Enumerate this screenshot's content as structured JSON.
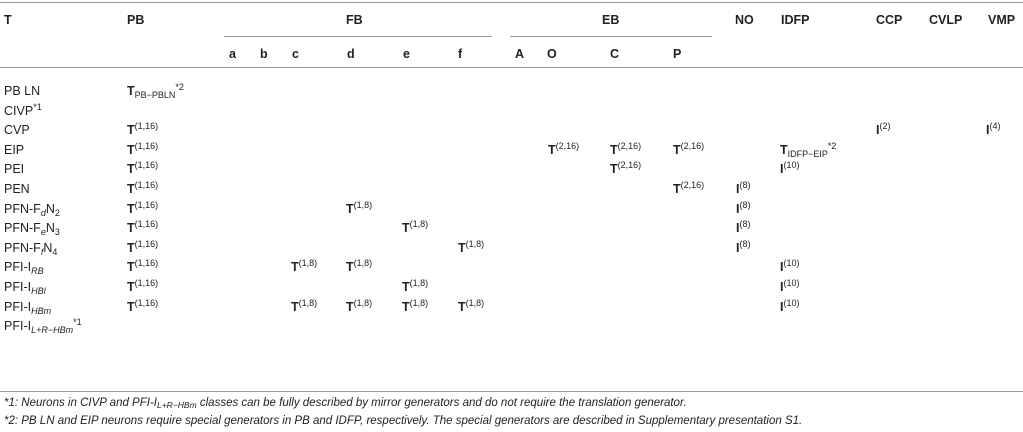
{
  "table": {
    "headers": {
      "T": "T",
      "PB": "PB",
      "FB": "FB",
      "EB": "EB",
      "NO": "NO",
      "IDFP": "IDFP",
      "CCP": "CCP",
      "CVLP": "CVLP",
      "VMP": "VMP"
    },
    "subheaders": {
      "a": "a",
      "b": "b",
      "c": "c",
      "d": "d",
      "e": "e",
      "f": "f",
      "A": "A",
      "O": "O",
      "C": "C",
      "P": "P"
    },
    "rows": [
      {
        "label": [
          "PB LN"
        ],
        "cells": {
          "PB": {
            "m": "T",
            "sub": "PB−PBLN",
            "sup": "*2"
          }
        }
      },
      {
        "label": [
          "CIVP",
          {
            "sup": "*1"
          }
        ],
        "cells": {}
      },
      {
        "label": [
          "CVP"
        ],
        "cells": {
          "PB": {
            "m": "T",
            "sup": "(1,16)"
          },
          "CCP": {
            "m": "I",
            "sup": "(2)"
          },
          "VMP": {
            "m": "I",
            "sup": "(4)"
          }
        }
      },
      {
        "label": [
          "EIP"
        ],
        "cells": {
          "PB": {
            "m": "T",
            "sup": "(1,16)"
          },
          "A": {
            "m": "T",
            "sup": "(2,16)"
          },
          "C": {
            "m": "T",
            "sup": "(2,16)"
          },
          "P": {
            "m": "T",
            "sup": "(2,16)"
          },
          "IDFP": {
            "m": "T",
            "sub": "IDFP−EIP",
            "sup": "*2"
          }
        }
      },
      {
        "label": [
          "PEI"
        ],
        "cells": {
          "PB": {
            "m": "T",
            "sup": "(1,16)"
          },
          "C": {
            "m": "T",
            "sup": "(2,16)"
          },
          "IDFP": {
            "m": "I",
            "sup": "(10)"
          }
        }
      },
      {
        "label": [
          "PEN"
        ],
        "cells": {
          "PB": {
            "m": "T",
            "sup": "(1,16)"
          },
          "P": {
            "m": "T",
            "sup": "(2,16)"
          },
          "NO": {
            "m": "I",
            "sup": "(8)"
          }
        }
      },
      {
        "label": [
          "PFN-F",
          {
            "isub": "d"
          },
          "N",
          {
            "sub": "2"
          }
        ],
        "cells": {
          "PB": {
            "m": "T",
            "sup": "(1,16)"
          },
          "d": {
            "m": "T",
            "sup": "(1,8)"
          },
          "NO": {
            "m": "I",
            "sup": "(8)"
          }
        }
      },
      {
        "label": [
          "PFN-F",
          {
            "isub": "e"
          },
          "N",
          {
            "sub": "3"
          }
        ],
        "cells": {
          "PB": {
            "m": "T",
            "sup": "(1,16)"
          },
          "e": {
            "m": "T",
            "sup": "(1,8)"
          },
          "NO": {
            "m": "I",
            "sup": "(8)"
          }
        }
      },
      {
        "label": [
          "PFN-F",
          {
            "isub": "f"
          },
          "N",
          {
            "sub": "4"
          }
        ],
        "cells": {
          "PB": {
            "m": "T",
            "sup": "(1,16)"
          },
          "f": {
            "m": "T",
            "sup": "(1,8)"
          },
          "NO": {
            "m": "I",
            "sup": "(8)"
          }
        }
      },
      {
        "label": [
          "PFI-I",
          {
            "isub": "RB"
          }
        ],
        "cells": {
          "PB": {
            "m": "T",
            "sup": "(1,16)"
          },
          "c": {
            "m": "T",
            "sup": "(1,8)"
          },
          "d": {
            "m": "T",
            "sup": "(1,8)"
          },
          "IDFP": {
            "m": "I",
            "sup": "(10)"
          }
        }
      },
      {
        "label": [
          "PFI-I",
          {
            "isub": "HBl"
          }
        ],
        "cells": {
          "PB": {
            "m": "T",
            "sup": "(1,16)"
          },
          "e": {
            "m": "T",
            "sup": "(1,8)"
          },
          "IDFP": {
            "m": "I",
            "sup": "(10)"
          }
        }
      },
      {
        "label": [
          "PFI-I",
          {
            "isub": "HBm"
          }
        ],
        "cells": {
          "PB": {
            "m": "T",
            "sup": "(1,16)"
          },
          "c": {
            "m": "T",
            "sup": "(1,8)"
          },
          "d": {
            "m": "T",
            "sup": "(1,8)"
          },
          "e": {
            "m": "T",
            "sup": "(1,8)"
          },
          "f": {
            "m": "T",
            "sup": "(1,8)"
          },
          "IDFP": {
            "m": "I",
            "sup": "(10)"
          }
        }
      },
      {
        "label": [
          "PFI-I",
          {
            "isub": "L+R−HBm"
          },
          {
            "sup": "*1"
          }
        ],
        "cells": {}
      }
    ]
  },
  "footnotes": {
    "fn1_pre": "*1: Neurons in CIVP and PFI-I",
    "fn1_sub": "L+R−HBm",
    "fn1_post": " classes can be fully described by mirror generators and do not require the translation generator.",
    "fn2": "*2: PB LN and EIP neurons require special generators in PB and IDFP, respectively. The special generators are described in Supplementary presentation S1."
  }
}
